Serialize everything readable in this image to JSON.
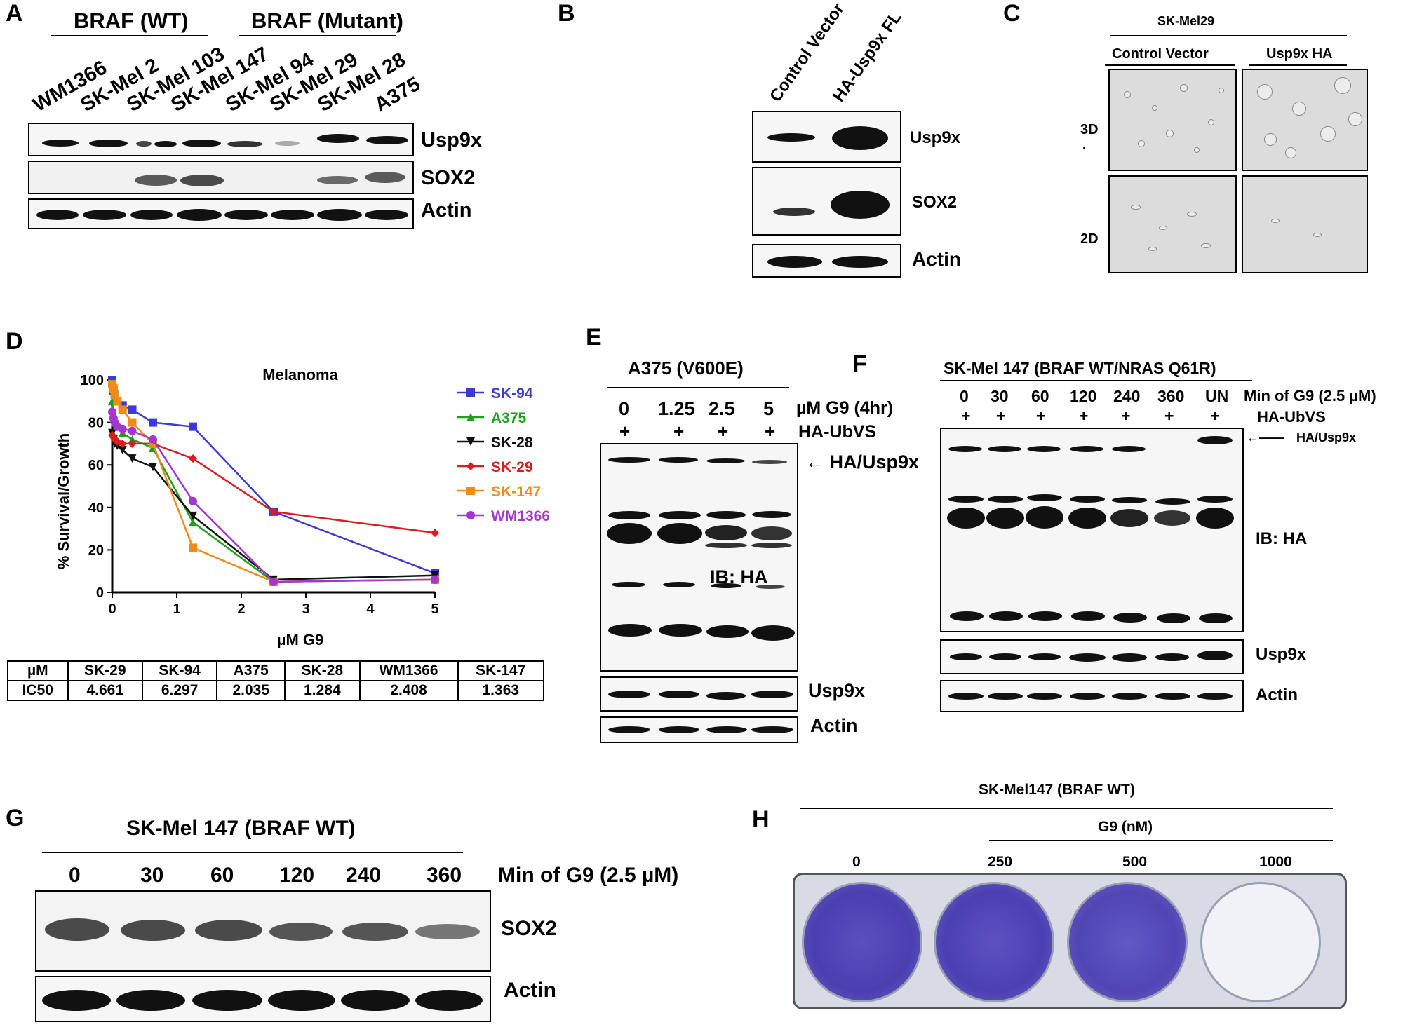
{
  "panels": {
    "A": {
      "letter": "A",
      "group_wt": "BRAF (WT)",
      "group_mut": "BRAF (Mutant)",
      "lanes": [
        "WM1366",
        "SK-Mel 2",
        "SK-Mel 103",
        "SK-Mel 147",
        "SK-Mel 94",
        "SK-Mel 29",
        "SK-Mel 28",
        "A375"
      ],
      "blots": [
        "Usp9x",
        "SOX2",
        "Actin"
      ]
    },
    "B": {
      "letter": "B",
      "lanes": [
        "Control Vector",
        "HA-Usp9x FL"
      ],
      "blots": [
        "Usp9x",
        "SOX2",
        "Actin"
      ]
    },
    "C": {
      "letter": "C",
      "title": "SK-Mel29",
      "cols": [
        "Control Vector",
        "Usp9x HA"
      ],
      "rows": [
        "3D",
        "2D"
      ],
      "dot": "."
    },
    "D": {
      "letter": "D",
      "table": {
        "header": [
          "µM",
          "SK-29",
          "SK-94",
          "A375",
          "SK-28",
          "WM1366",
          "SK-147"
        ],
        "row": [
          "IC50",
          "4.661",
          "6.297",
          "2.035",
          "1.284",
          "2.408",
          "1.363"
        ]
      }
    },
    "E": {
      "letter": "E",
      "title": "A375 (V600E)",
      "doses": [
        "0",
        "1.25",
        "2.5",
        "5"
      ],
      "dose_label": "µM G9 (4hr)",
      "plus": "+",
      "reagent": "HA-UbVS",
      "arrow_label": "← HA/Usp9x",
      "ib": "IB: HA",
      "blots": [
        "Usp9x",
        "Actin"
      ]
    },
    "F": {
      "letter": "F",
      "title": "SK-Mel 147 (BRAF  WT/NRAS  Q61R)",
      "times": [
        "0",
        "30",
        "60",
        "120",
        "240",
        "360",
        "UN"
      ],
      "time_label": "Min of G9 (2.5 µM)",
      "plus": "+",
      "reagent": "HA-UbVS",
      "arrow_label": "HA/Usp9x",
      "ib": "IB: HA",
      "blots": [
        "Usp9x",
        "Actin"
      ]
    },
    "G": {
      "letter": "G",
      "title": "SK-Mel 147 (BRAF WT)",
      "times": [
        "0",
        "30",
        "60",
        "120",
        "240",
        "360"
      ],
      "time_label": "Min of G9 (2.5 µM)",
      "blots": [
        "SOX2",
        "Actin"
      ]
    },
    "H": {
      "letter": "H",
      "title": "SK-Mel147 (BRAF WT)",
      "drug_label": "G9 (nM)",
      "doses": [
        "0",
        "250",
        "500",
        "1000"
      ]
    }
  },
  "chart_data": {
    "type": "line",
    "title": "Melanoma",
    "xlabel": "µM G9",
    "ylabel": "% Survival/Growth",
    "xlim": [
      0,
      5
    ],
    "ylim": [
      0,
      100
    ],
    "xticks": [
      0,
      1,
      2,
      3,
      4,
      5
    ],
    "yticks": [
      0,
      20,
      40,
      60,
      80,
      100
    ],
    "legend_position": "right",
    "series": [
      {
        "name": "SK-94",
        "color": "#3a3ad8",
        "marker": "square",
        "x": [
          0,
          0.02,
          0.04,
          0.08,
          0.16,
          0.31,
          0.63,
          1.25,
          2.5,
          5
        ],
        "y": [
          100,
          95,
          93,
          90,
          88,
          86,
          80,
          78,
          38,
          9
        ]
      },
      {
        "name": "A375",
        "color": "#1ea01e",
        "marker": "triangle",
        "x": [
          0,
          0.02,
          0.04,
          0.08,
          0.16,
          0.31,
          0.63,
          1.25,
          2.5,
          5
        ],
        "y": [
          90,
          84,
          80,
          78,
          75,
          72,
          68,
          33,
          5,
          6
        ]
      },
      {
        "name": "SK-28",
        "color": "#111111",
        "marker": "triangle-down",
        "x": [
          0,
          0.02,
          0.04,
          0.08,
          0.16,
          0.31,
          0.63,
          1.25,
          2.5,
          5
        ],
        "y": [
          75,
          72,
          70,
          69,
          67,
          63,
          59,
          36,
          6,
          8
        ]
      },
      {
        "name": "SK-29",
        "color": "#d81e1e",
        "marker": "diamond",
        "x": [
          0,
          0.02,
          0.04,
          0.08,
          0.16,
          0.31,
          0.63,
          1.25,
          2.5,
          5
        ],
        "y": [
          74,
          73,
          72,
          71,
          70,
          70,
          70,
          63,
          38,
          28
        ]
      },
      {
        "name": "SK-147",
        "color": "#f08a1a",
        "marker": "square",
        "x": [
          0,
          0.02,
          0.04,
          0.08,
          0.16,
          0.31,
          0.63,
          1.25,
          2.5,
          5
        ],
        "y": [
          98,
          96,
          93,
          90,
          86,
          80,
          70,
          21,
          5,
          6
        ]
      },
      {
        "name": "WM1366",
        "color": "#a535d0",
        "marker": "circle",
        "x": [
          0,
          0.02,
          0.04,
          0.08,
          0.16,
          0.31,
          0.63,
          1.25,
          2.5,
          5
        ],
        "y": [
          85,
          82,
          80,
          78,
          77,
          76,
          72,
          43,
          5,
          6
        ]
      }
    ]
  }
}
